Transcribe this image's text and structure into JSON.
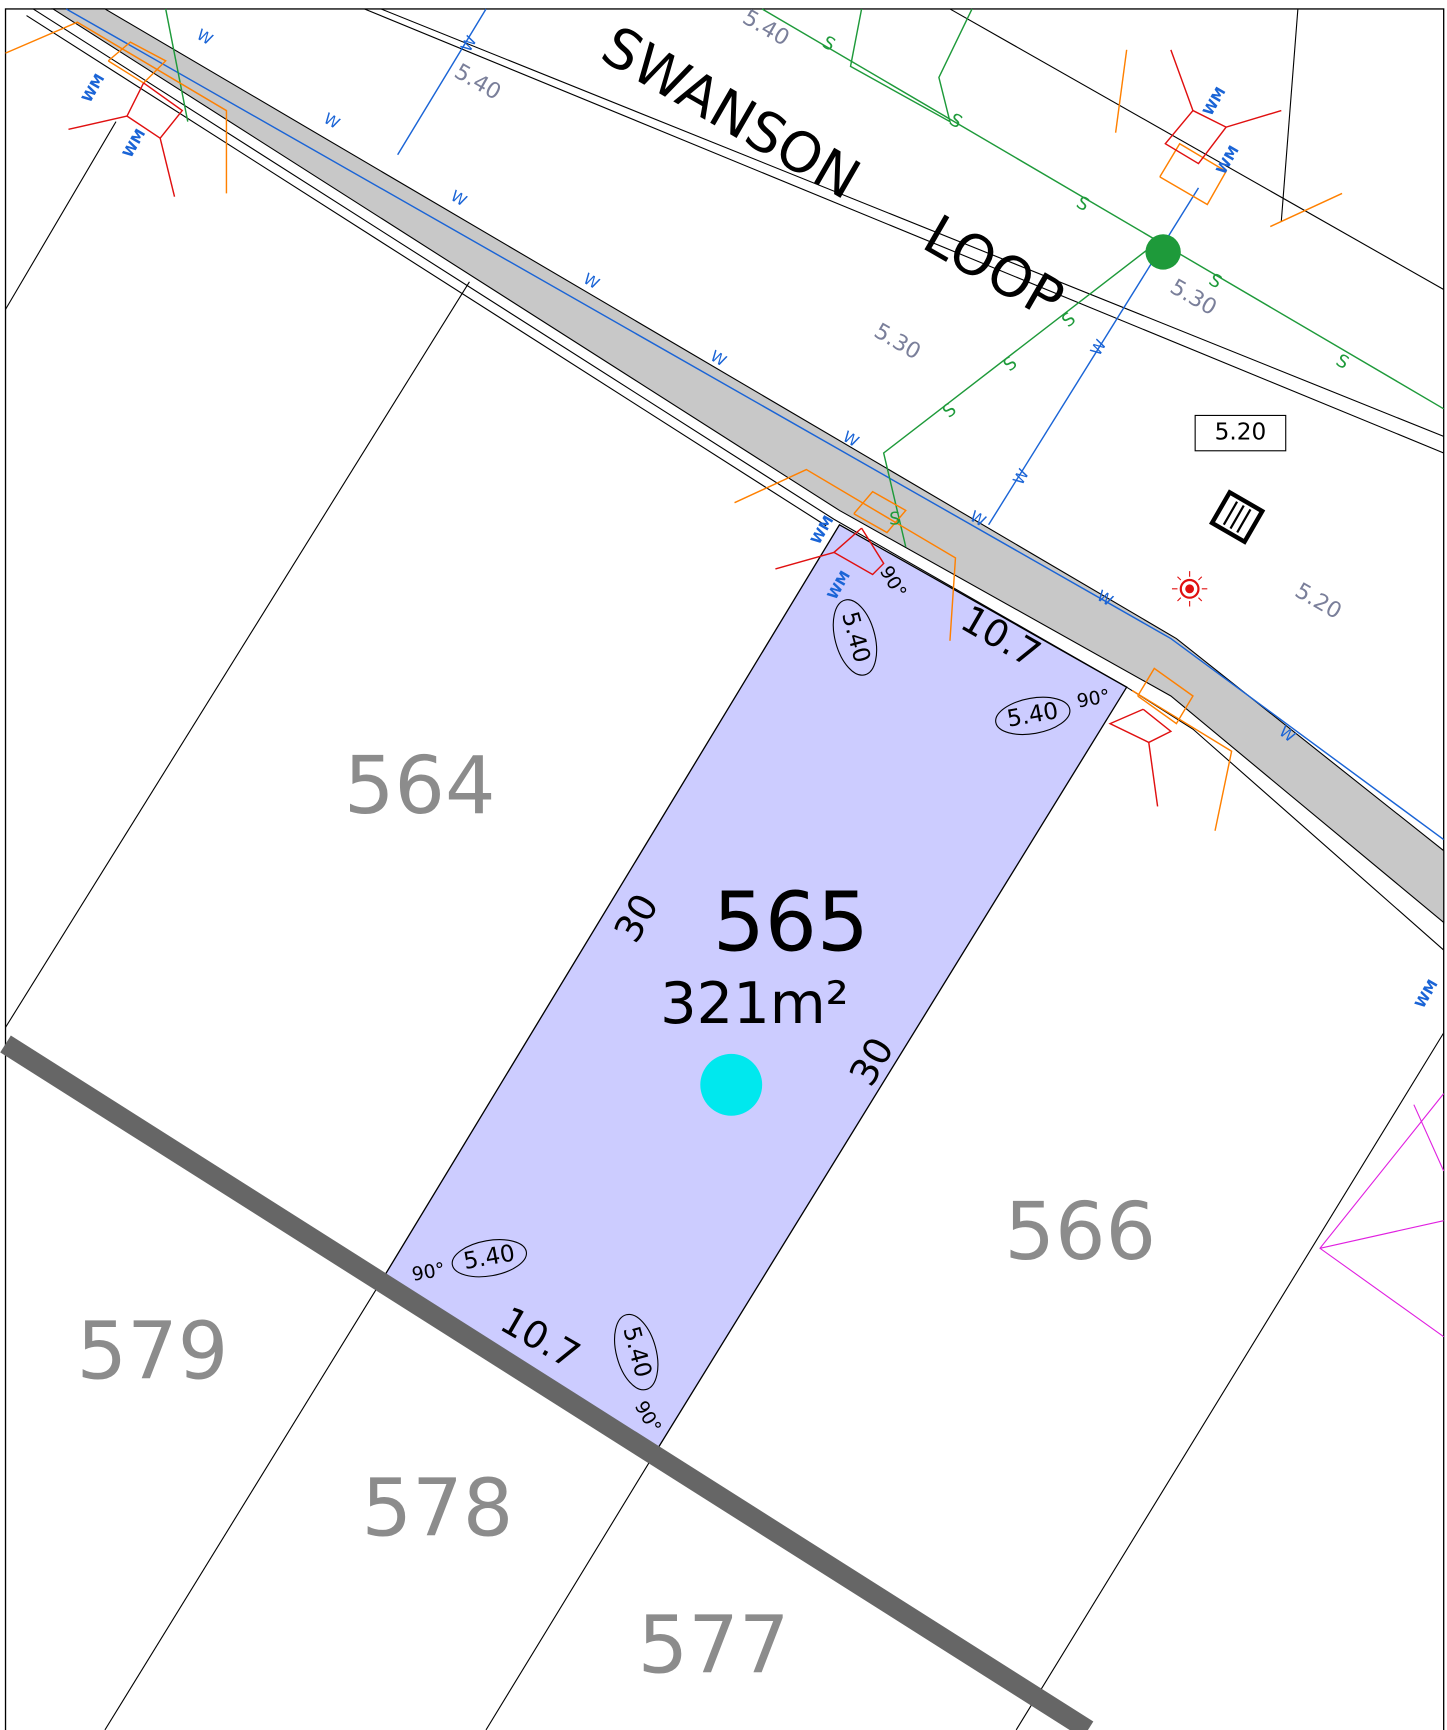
{
  "street": [
    "SWANSON",
    "LOOP"
  ],
  "lots": [
    "564",
    "566",
    "577",
    "578",
    "579"
  ],
  "main_lot": {
    "number": "565",
    "area": "321m²",
    "frontage": "10.7",
    "rear": "10.7",
    "side_left": "30",
    "side_right": "30"
  },
  "corner_levels": [
    "5.40",
    "5.40",
    "5.40",
    "5.40"
  ],
  "corner_angles": [
    "90°",
    "90°",
    "90°",
    "90°"
  ],
  "contours": [
    "5.40",
    "5.40",
    "5.30",
    "5.30",
    "5.20"
  ],
  "spot_level": "5.20",
  "utility_labels": {
    "sewer": "S",
    "water": "W",
    "water_meter": "WM"
  }
}
